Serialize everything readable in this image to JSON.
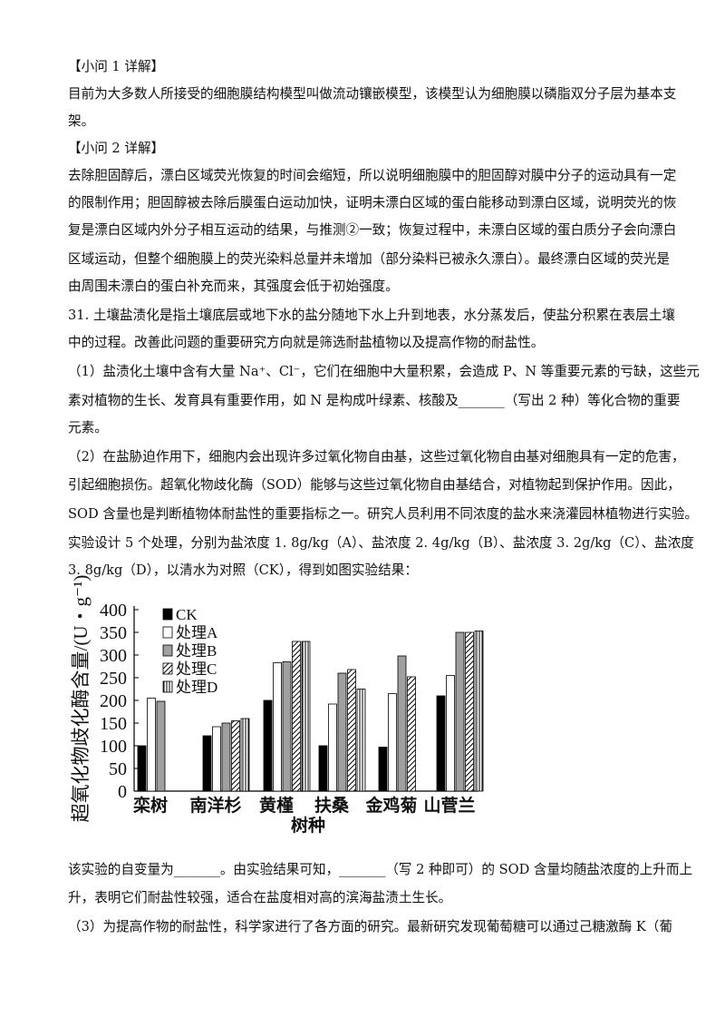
{
  "paragraphs": [
    [
      "【小问 1 详解】"
    ],
    [
      "目前为大多数人所接受的细胞膜结构模型叫做流动镶嵌模型，该模型认为细胞膜以磷脂双分子层为基本支",
      "架。"
    ],
    [
      "【小问 2 详解】"
    ],
    [
      "去除胆固醇后，漂白区域荧光恢复的时间会缩短，所以说明细胞膜中的胆固醇对膜中分子的运动具有一定",
      "的限制作用；胆固醇被去除后膜蛋白运动加快，证明未漂白区域的蛋白能移动到漂白区域，说明荧光的恢",
      "复是漂白区域内外分子相互运动的结果，与推测②一致；恢复过程中，未漂白区域的蛋白质分子会向漂白",
      "区域运动，但整个细胞膜上的荧光染料总量并未增加（部分染料已被永久漂白）。最终漂白区域的荧光是",
      "由周围未漂白的蛋白补充而来，其强度会低于初始强度。"
    ],
    [
      "31. 土壤盐渍化是指土壤底层或地下水的盐分随地下水上升到地表，水分蒸发后，使盐分积累在表层土壤",
      "中的过程。改善此问题的重要研究方向就是筛选耐盐植物以及提高作物的耐盐性。"
    ],
    [
      "（1）盐渍化土壤中含有大量 Na⁺、Cl⁻，它们在细胞中大量积累，会造成 P、N 等重要元素的亏缺，这些元",
      "素对植物的生长、发育具有重要作用，如 N 是构成叶绿素、核酸及_______（写出 2 种）等化合物的重要",
      "元素。"
    ],
    [
      "（2）在盐胁迫作用下，细胞内会出现许多过氧化物自由基，这些过氧化物自由基对细胞具有一定的危害，",
      "引起细胞损伤。超氧化物歧化酶（SOD）能够与这些过氧化物自由基结合，对植物起到保护作用。因此，",
      "SOD 含量也是判断植物体耐盐性的重要指标之一。研究人员利用不同浓度的盐水来浇灌园林植物进行实验。",
      "实验设计 5 个处理，分别为盐浓度 1. 8g/kg（A）、盐浓度 2. 4g/kg（B）、盐浓度 3. 2g/kg（C）、盐浓度",
      "3. 8g/kg（D），以清水为对照（CK），得到如图实验结果："
    ]
  ],
  "after_paragraphs": [
    [
      "该实验的自变量为_______。由实验结果可知，_______（写 2 种即可）的 SOD 含量均随盐浓度的上升而上",
      "升，表明它们耐盐性较强，适合在盐度相对高的滨海盐渍土生长。"
    ],
    [
      "（3）为提高作物的耐盐性，科学家进行了各方面的研究。最新研究发现葡萄糖可以通过己糖激酶 K（葡"
    ]
  ],
  "chart_data": {
    "type": "bar",
    "y_label": "超氧化物歧化酶含量/(U・g⁻¹)",
    "x_label": "树种",
    "categories": [
      "栾树",
      "南洋杉",
      "黄槿",
      "扶桑",
      "金鸡菊",
      "山菅兰"
    ],
    "series": [
      {
        "name": "CK",
        "color": "#000000",
        "pattern": "solid",
        "values": [
          100,
          122,
          200,
          100,
          97,
          210
        ]
      },
      {
        "name": "处理A",
        "color": "#ffffff",
        "pattern": "solid",
        "values": [
          205,
          142,
          283,
          192,
          215,
          255
        ]
      },
      {
        "name": "处理B",
        "color": "#a0a0a0",
        "pattern": "solid",
        "values": [
          198,
          150,
          285,
          260,
          298,
          350
        ]
      },
      {
        "name": "处理C",
        "color": "#000000",
        "pattern": "diagonal",
        "values": [
          null,
          155,
          330,
          268,
          252,
          350
        ]
      },
      {
        "name": "处理D",
        "color": "#000000",
        "pattern": "vertical",
        "values": [
          null,
          160,
          330,
          225,
          null,
          353
        ]
      }
    ],
    "ylim": [
      0,
      400
    ],
    "yticks": [
      0,
      50,
      100,
      150,
      200,
      250,
      300,
      350,
      400
    ]
  }
}
